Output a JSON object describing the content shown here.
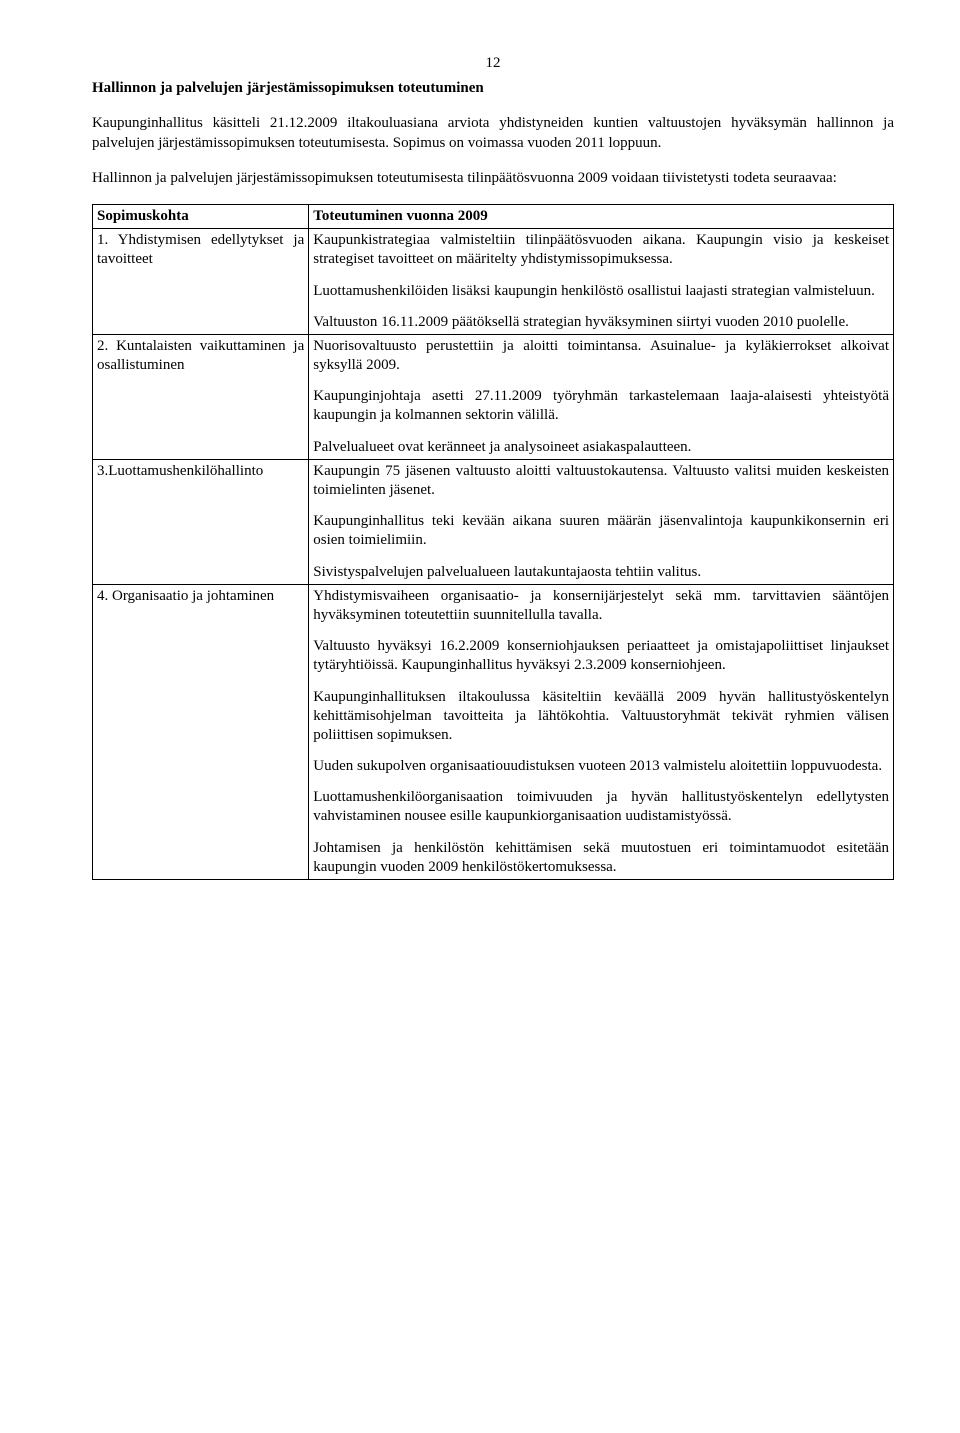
{
  "page_number": "12",
  "heading": "Hallinnon ja palvelujen järjestämissopimuksen toteutuminen",
  "intro_p1": "Kaupunginhallitus käsitteli 21.12.2009 iltakouluasiana arviota yhdistyneiden kuntien valtuustojen hyväksymän hallinnon ja palvelujen järjestämissopimuksen toteutumisesta. Sopimus on voimassa vuoden 2011 loppuun.",
  "intro_p2": "Hallinnon ja palvelujen järjestämissopimuksen toteutumisesta tilinpäätösvuonna 2009 voidaan tiivistetysti todeta seuraavaa:",
  "table": {
    "header_left": "Sopimuskohta",
    "header_right": "Toteutuminen vuonna 2009",
    "rows": [
      {
        "left": "1. Yhdistymisen edellytykset ja tavoitteet",
        "right": [
          "Kaupunkistrategiaa valmisteltiin tilinpäätösvuoden aikana. Kaupungin visio ja keskeiset strategiset tavoitteet on määritelty yhdistymissopimuksessa.",
          "Luottamushenkilöiden lisäksi kaupungin henkilöstö osallistui laajasti strategian valmisteluun.",
          "Valtuuston 16.11.2009 päätöksellä strategian hyväksyminen siirtyi vuoden 2010 puolelle."
        ]
      },
      {
        "left": "2. Kuntalaisten vaikuttaminen ja osallistuminen",
        "right": [
          "Nuorisovaltuusto perustettiin ja aloitti toimintansa. Asuinalue- ja kyläkierrokset alkoivat syksyllä 2009.",
          "Kaupunginjohtaja asetti 27.11.2009 työryhmän tarkastelemaan laaja-alaisesti yhteistyötä kaupungin ja kolmannen sektorin välillä.",
          "Palvelualueet ovat keränneet ja analysoineet asiakaspalautteen."
        ]
      },
      {
        "left": "3.Luottamushenkilöhallinto",
        "right": [
          "Kaupungin 75 jäsenen valtuusto aloitti valtuustokautensa. Valtuusto valitsi muiden keskeisten toimielinten jäsenet.",
          "Kaupunginhallitus teki kevään aikana suuren määrän jäsenvalintoja kaupunkikonsernin eri osien toimielimiin.",
          "Sivistyspalvelujen palvelualueen lautakuntajaosta tehtiin valitus."
        ]
      },
      {
        "left": "4. Organisaatio ja johtaminen",
        "right": [
          "Yhdistymisvaiheen organisaatio- ja konsernijärjestelyt sekä mm. tarvittavien sääntöjen hyväksyminen toteutettiin suunnitellulla tavalla.",
          "Valtuusto hyväksyi 16.2.2009 konserniohjauksen periaatteet ja omistajapoliittiset linjaukset tytäryhtiöissä. Kaupunginhallitus hyväksyi 2.3.2009 konserniohjeen.",
          "Kaupunginhallituksen iltakoulussa käsiteltiin keväällä 2009 hyvän hallitustyöskentelyn kehittämisohjelman tavoitteita ja lähtökohtia. Valtuustoryhmät tekivät ryhmien välisen poliittisen sopimuksen.",
          "Uuden sukupolven organisaatiouudistuksen vuoteen 2013 valmistelu aloitettiin loppuvuodesta.",
          "Luottamushenkilöorganisaation toimivuuden ja hyvän hallitustyöskentelyn edellytysten vahvistaminen nousee esille kaupunkiorganisaation uudistamistyössä.",
          "Johtamisen ja henkilöstön kehittämisen sekä muutostuen eri toimintamuodot esitetään kaupungin vuoden 2009 henkilöstökertomuksessa."
        ]
      }
    ]
  }
}
